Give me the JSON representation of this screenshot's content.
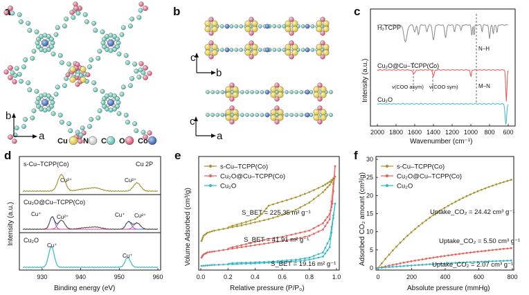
{
  "panels": {
    "a": {
      "label": "a",
      "axes": {
        "vertical": "b",
        "horizontal": "a"
      },
      "legend": [
        {
          "symbol": "Cu",
          "color": "#ead04a"
        },
        {
          "symbol": "N",
          "color": "#d8d8d8"
        },
        {
          "symbol": "C",
          "color": "#6fd0c2"
        },
        {
          "symbol": "O",
          "color": "#e0607e"
        },
        {
          "symbol": "Co",
          "color": "#3f6fc0"
        }
      ]
    },
    "b": {
      "label": "b",
      "axes_top": {
        "vertical": "c",
        "horizontal": "b"
      },
      "axes_bottom": {
        "vertical": "c",
        "horizontal": "a"
      }
    },
    "c": {
      "label": "c",
      "xlabel": "Wavenumber (cm⁻¹)",
      "ylabel": "Intensity (a.u.)",
      "xticks": [
        "2000",
        "1800",
        "1600",
        "1400",
        "1200",
        "1000",
        "800",
        "600"
      ],
      "traces": [
        {
          "name": "H₂TCPP",
          "color": "#888888"
        },
        {
          "name": "Cu₂O@Cu–TCPP(Co)",
          "color": "#e8504a"
        },
        {
          "name": "Cu₂O",
          "color": "#35b8c8"
        }
      ],
      "annotations": {
        "nh": "N–H",
        "mn": "M–N",
        "asym": "ν(COO asym)",
        "sym": "ν(COO sym)"
      }
    },
    "d": {
      "label": "d",
      "xlabel": "Binding energy (eV)",
      "ylabel": "Intensity (a.u.)",
      "xticks": [
        "930",
        "940",
        "950",
        "960"
      ],
      "title_right": "Cu 2P",
      "subpanels": [
        {
          "name": "s-Cu–TCPP(Co)",
          "peaks": [
            "Cu²⁺",
            "Cu²⁺"
          ]
        },
        {
          "name": "Cu₂O@Cu–TCPP(Co)",
          "peaks": [
            "Cu⁺",
            "Cu²⁺",
            "Cu⁺",
            "Cu²⁺"
          ]
        },
        {
          "name": "Cu₂O",
          "peaks": [
            "Cu⁺",
            "Cu⁺"
          ]
        }
      ]
    }
  },
  "chart_data": [
    {
      "type": "line",
      "panel": "e",
      "xlabel": "Relative pressure (P/P₀)",
      "ylabel": "Volume Adsorbed (cm³/g)",
      "xlim": [
        0,
        1
      ],
      "xticks": [
        "0.0",
        "0.2",
        "0.4",
        "0.6",
        "0.8",
        "1.0"
      ],
      "series": [
        {
          "name": "s-Cu–TCPP(Co)",
          "color": "#a89530",
          "adsorption": [
            [
              0.005,
              0.26
            ],
            [
              0.02,
              0.31
            ],
            [
              0.05,
              0.34
            ],
            [
              0.1,
              0.36
            ],
            [
              0.2,
              0.385
            ],
            [
              0.3,
              0.41
            ],
            [
              0.4,
              0.44
            ],
            [
              0.5,
              0.47
            ],
            [
              0.6,
              0.51
            ],
            [
              0.7,
              0.56
            ],
            [
              0.8,
              0.63
            ],
            [
              0.9,
              0.73
            ],
            [
              0.95,
              0.8
            ],
            [
              0.99,
              0.88
            ]
          ],
          "desorption": [
            [
              0.99,
              0.88
            ],
            [
              0.95,
              0.83
            ],
            [
              0.9,
              0.79
            ],
            [
              0.8,
              0.73
            ],
            [
              0.7,
              0.68
            ],
            [
              0.6,
              0.64
            ],
            [
              0.5,
              0.6
            ],
            [
              0.45,
              0.52
            ],
            [
              0.4,
              0.47
            ],
            [
              0.3,
              0.43
            ],
            [
              0.2,
              0.395
            ]
          ],
          "annotation": "S_BET = 225.35 m² g⁻¹"
        },
        {
          "name": "Cu₂O@Cu–TCPP(Co)",
          "color": "#e85f5a",
          "adsorption": [
            [
              0.005,
              0.1
            ],
            [
              0.02,
              0.13
            ],
            [
              0.05,
              0.15
            ],
            [
              0.1,
              0.16
            ],
            [
              0.2,
              0.18
            ],
            [
              0.3,
              0.2
            ],
            [
              0.4,
              0.22
            ],
            [
              0.5,
              0.24
            ],
            [
              0.6,
              0.26
            ],
            [
              0.7,
              0.28
            ],
            [
              0.8,
              0.31
            ],
            [
              0.9,
              0.37
            ],
            [
              0.95,
              0.47
            ],
            [
              0.99,
              0.98
            ]
          ],
          "desorption": [
            [
              0.99,
              0.98
            ],
            [
              0.97,
              0.62
            ],
            [
              0.95,
              0.52
            ],
            [
              0.9,
              0.43
            ],
            [
              0.8,
              0.36
            ],
            [
              0.7,
              0.33
            ],
            [
              0.6,
              0.3
            ],
            [
              0.5,
              0.28
            ],
            [
              0.4,
              0.25
            ],
            [
              0.3,
              0.22
            ],
            [
              0.2,
              0.19
            ]
          ],
          "annotation": "S_BET = 41.91 m² g⁻¹"
        },
        {
          "name": "Cu₂O",
          "color": "#35b8c8",
          "adsorption": [
            [
              0.005,
              0.02
            ],
            [
              0.05,
              0.025
            ],
            [
              0.1,
              0.03
            ],
            [
              0.2,
              0.035
            ],
            [
              0.3,
              0.04
            ],
            [
              0.4,
              0.045
            ],
            [
              0.5,
              0.05
            ],
            [
              0.6,
              0.055
            ],
            [
              0.7,
              0.065
            ],
            [
              0.8,
              0.08
            ],
            [
              0.9,
              0.11
            ],
            [
              0.95,
              0.2
            ],
            [
              0.99,
              0.62
            ]
          ],
          "desorption": [
            [
              0.99,
              0.62
            ],
            [
              0.95,
              0.28
            ],
            [
              0.9,
              0.15
            ],
            [
              0.8,
              0.1
            ],
            [
              0.7,
              0.08
            ],
            [
              0.6,
              0.07
            ],
            [
              0.5,
              0.06
            ],
            [
              0.4,
              0.055
            ],
            [
              0.3,
              0.05
            ],
            [
              0.2,
              0.045
            ]
          ],
          "annotation": "S_BET = 19.16 m² g⁻¹"
        }
      ]
    },
    {
      "type": "line",
      "panel": "f",
      "xlabel": "Absolute pressure (mmHg)",
      "ylabel": "Adsorbed CO₂ amount (cm³/g)",
      "xlim": [
        0,
        800
      ],
      "ylim": [
        0,
        30
      ],
      "xticks": [
        "0",
        "200",
        "400",
        "600",
        "800"
      ],
      "yticks": [
        "0",
        "5",
        "10",
        "15",
        "20",
        "25",
        "30"
      ],
      "series": [
        {
          "name": "s-Cu–TCPP(Co)",
          "color": "#a89530",
          "max_uptake": 24.42,
          "annotation": "Uptake_CO₂ = 24.42 cm³ g⁻¹"
        },
        {
          "name": "Cu₂O@Cu–TCPP(Co)",
          "color": "#e85f5a",
          "max_uptake": 5.5,
          "annotation": "Uptake_CO₂ = 5.50 cm³ g⁻¹"
        },
        {
          "name": "Cu₂O",
          "color": "#35b8c8",
          "max_uptake": 2.07,
          "annotation": "Uptake_CO₂ = 2.07 cm³ g⁻¹"
        }
      ]
    }
  ]
}
